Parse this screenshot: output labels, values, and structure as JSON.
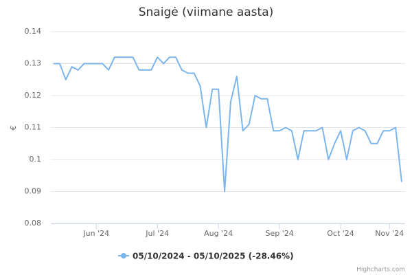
{
  "chart_data": {
    "type": "line",
    "title": "Snaigė (viimane aasta)",
    "y_label": "€",
    "credits": "Highcharts.com",
    "categories": [
      null,
      null,
      null,
      null,
      null,
      null,
      null,
      "Jun '24",
      null,
      null,
      null,
      null,
      null,
      null,
      null,
      null,
      null,
      "Jul '24",
      null,
      null,
      null,
      null,
      null,
      null,
      null,
      null,
      null,
      "Aug '24",
      null,
      null,
      null,
      null,
      null,
      null,
      null,
      null,
      null,
      "Sep '24",
      null,
      null,
      null,
      null,
      null,
      null,
      null,
      null,
      null,
      "Oct '24",
      null,
      null,
      null,
      null,
      null,
      null,
      null,
      "Nov '24",
      null,
      null
    ],
    "series": [
      {
        "name": "05/10/2024 - 05/10/2025 (-28.46%)",
        "color": "#7cb5ec",
        "values": [
          0.13,
          0.13,
          0.125,
          0.129,
          0.128,
          0.13,
          0.13,
          0.13,
          0.13,
          0.128,
          0.132,
          0.132,
          0.132,
          0.132,
          0.128,
          0.128,
          0.128,
          0.132,
          0.13,
          0.132,
          0.132,
          0.128,
          0.127,
          0.127,
          0.123,
          0.11,
          0.122,
          0.122,
          0.09,
          0.118,
          0.126,
          0.109,
          0.111,
          0.12,
          0.119,
          0.119,
          0.109,
          0.109,
          0.11,
          0.109,
          0.1,
          0.109,
          0.109,
          0.109,
          0.11,
          0.1,
          0.105,
          0.109,
          0.1,
          0.109,
          0.11,
          0.109,
          0.105,
          0.105,
          0.109,
          0.109,
          0.11,
          0.093
        ]
      }
    ],
    "ylim": [
      0.08,
      0.14
    ],
    "yticks": [
      0.08,
      0.09,
      0.1,
      0.11,
      0.12,
      0.13,
      0.14
    ],
    "grid": true
  }
}
